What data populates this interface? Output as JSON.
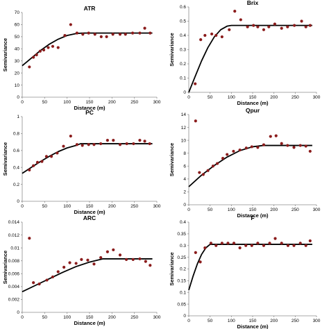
{
  "colors": {
    "points": "#8b1c1c",
    "model_line": "#000000",
    "axis": "#8c8c8c"
  },
  "chart_data": [
    {
      "type": "scatter",
      "title": "ATR",
      "xlabel": "Distance (m)",
      "ylabel": "Semivariance",
      "xlim": [
        0,
        300
      ],
      "ylim": [
        0,
        70
      ],
      "xticks": [
        "0",
        "50",
        "100",
        "150",
        "200",
        "250",
        "300"
      ],
      "yticks": [
        "0",
        "10",
        "20",
        "30",
        "40",
        "50",
        "60",
        "70"
      ],
      "points": [
        [
          16,
          25
        ],
        [
          25,
          33
        ],
        [
          32,
          35
        ],
        [
          40,
          38
        ],
        [
          48,
          39
        ],
        [
          58,
          41
        ],
        [
          68,
          42
        ],
        [
          80,
          41
        ],
        [
          95,
          51
        ],
        [
          108,
          60
        ],
        [
          122,
          53
        ],
        [
          135,
          52
        ],
        [
          148,
          53
        ],
        [
          162,
          52
        ],
        [
          176,
          50
        ],
        [
          188,
          50
        ],
        [
          202,
          52
        ],
        [
          218,
          52
        ],
        [
          230,
          52
        ],
        [
          246,
          53
        ],
        [
          262,
          53
        ],
        [
          273,
          57
        ],
        [
          285,
          53
        ]
      ],
      "model": [
        [
          0,
          26
        ],
        [
          20,
          32.2
        ],
        [
          40,
          38.4
        ],
        [
          60,
          43.7
        ],
        [
          80,
          47.9
        ],
        [
          100,
          51
        ],
        [
          120,
          52.6
        ],
        [
          135,
          53
        ],
        [
          290,
          53
        ]
      ]
    },
    {
      "type": "scatter",
      "title": "Brix",
      "xlabel": "Distance (m)",
      "ylabel": "Semivariance",
      "xlim": [
        0,
        300
      ],
      "ylim": [
        0,
        0.6
      ],
      "xticks": [
        "0",
        "50",
        "100",
        "150",
        "200",
        "250",
        "300"
      ],
      "yticks": [
        "0",
        "0.1",
        "0.2",
        "0.3",
        "0.4",
        "0.5",
        "0.6"
      ],
      "points": [
        [
          15,
          0.06
        ],
        [
          28,
          0.37
        ],
        [
          38,
          0.4
        ],
        [
          54,
          0.41
        ],
        [
          64,
          0.4
        ],
        [
          78,
          0.39
        ],
        [
          95,
          0.44
        ],
        [
          108,
          0.57
        ],
        [
          122,
          0.51
        ],
        [
          138,
          0.46
        ],
        [
          152,
          0.47
        ],
        [
          162,
          0.46
        ],
        [
          176,
          0.44
        ],
        [
          188,
          0.46
        ],
        [
          202,
          0.48
        ],
        [
          218,
          0.45
        ],
        [
          232,
          0.46
        ],
        [
          248,
          0.47
        ],
        [
          265,
          0.5
        ],
        [
          275,
          0.46
        ],
        [
          285,
          0.47
        ]
      ],
      "model": [
        [
          0,
          0
        ],
        [
          15,
          0.112
        ],
        [
          30,
          0.221
        ],
        [
          45,
          0.315
        ],
        [
          60,
          0.39
        ],
        [
          75,
          0.44
        ],
        [
          90,
          0.465
        ],
        [
          100,
          0.47
        ],
        [
          290,
          0.47
        ]
      ]
    },
    {
      "type": "scatter",
      "title": "PC",
      "xlabel": "Distance (m)",
      "ylabel": "Semivariance",
      "xlim": [
        0,
        300
      ],
      "ylim": [
        0,
        1
      ],
      "xticks": [
        "0",
        "50",
        "100",
        "150",
        "200",
        "250",
        "300"
      ],
      "yticks": [
        "0",
        "0.2",
        "0.4",
        "0.6",
        "0.8",
        "1"
      ],
      "points": [
        [
          16,
          0.37
        ],
        [
          25,
          0.42
        ],
        [
          34,
          0.46
        ],
        [
          44,
          0.47
        ],
        [
          54,
          0.53
        ],
        [
          65,
          0.53
        ],
        [
          78,
          0.57
        ],
        [
          92,
          0.65
        ],
        [
          108,
          0.77
        ],
        [
          122,
          0.67
        ],
        [
          134,
          0.66
        ],
        [
          148,
          0.67
        ],
        [
          160,
          0.67
        ],
        [
          175,
          0.68
        ],
        [
          190,
          0.72
        ],
        [
          203,
          0.72
        ],
        [
          218,
          0.67
        ],
        [
          233,
          0.68
        ],
        [
          248,
          0.68
        ],
        [
          262,
          0.72
        ],
        [
          273,
          0.71
        ],
        [
          284,
          0.68
        ]
      ],
      "model": [
        [
          0,
          0.33
        ],
        [
          20,
          0.4
        ],
        [
          40,
          0.467
        ],
        [
          60,
          0.53
        ],
        [
          80,
          0.586
        ],
        [
          100,
          0.63
        ],
        [
          120,
          0.66
        ],
        [
          130,
          0.68
        ],
        [
          290,
          0.68
        ]
      ]
    },
    {
      "type": "scatter",
      "title": "Qpur",
      "xlabel": "Distance (m)",
      "ylabel": "Semivariance",
      "xlim": [
        0,
        300
      ],
      "ylim": [
        0,
        14
      ],
      "xticks": [
        "0",
        "50",
        "100",
        "150",
        "200",
        "250",
        "300"
      ],
      "yticks": [
        "0",
        "2",
        "4",
        "6",
        "8",
        "10",
        "12",
        "14"
      ],
      "points": [
        [
          16,
          13
        ],
        [
          25,
          5
        ],
        [
          34,
          4.7
        ],
        [
          45,
          5.3
        ],
        [
          57,
          6
        ],
        [
          67,
          6.4
        ],
        [
          80,
          7.2
        ],
        [
          90,
          7.8
        ],
        [
          105,
          8.3
        ],
        [
          120,
          8.5
        ],
        [
          135,
          8.8
        ],
        [
          148,
          9
        ],
        [
          162,
          8.9
        ],
        [
          176,
          9.3
        ],
        [
          192,
          10.6
        ],
        [
          205,
          10.7
        ],
        [
          218,
          9.5
        ],
        [
          232,
          9.2
        ],
        [
          247,
          8.9
        ],
        [
          262,
          9.2
        ],
        [
          275,
          9.1
        ],
        [
          285,
          8.3
        ]
      ],
      "model": [
        [
          0,
          2.8
        ],
        [
          30,
          4.6
        ],
        [
          60,
          6.1
        ],
        [
          90,
          7.4
        ],
        [
          120,
          8.4
        ],
        [
          150,
          9
        ],
        [
          175,
          9.2
        ],
        [
          290,
          9.2
        ]
      ]
    },
    {
      "type": "scatter",
      "title": "ARC",
      "xlabel": "Distance (m)",
      "ylabel": "Semivariance",
      "xlim": [
        0,
        300
      ],
      "ylim": [
        0,
        0.014
      ],
      "xticks": [
        "0",
        "50",
        "100",
        "150",
        "200",
        "250",
        "300"
      ],
      "yticks": [
        "0",
        "0.002",
        "0.004",
        "0.006",
        "0.008",
        "0.01",
        "0.012",
        "0.014"
      ],
      "points": [
        [
          16,
          0.0115
        ],
        [
          25,
          0.0046
        ],
        [
          38,
          0.0044
        ],
        [
          55,
          0.005
        ],
        [
          68,
          0.0055
        ],
        [
          80,
          0.0063
        ],
        [
          93,
          0.007
        ],
        [
          106,
          0.0077
        ],
        [
          120,
          0.0076
        ],
        [
          132,
          0.0082
        ],
        [
          146,
          0.0081
        ],
        [
          160,
          0.0075
        ],
        [
          175,
          0.0085
        ],
        [
          190,
          0.0094
        ],
        [
          203,
          0.0097
        ],
        [
          218,
          0.0089
        ],
        [
          232,
          0.0082
        ],
        [
          247,
          0.0082
        ],
        [
          262,
          0.0083
        ],
        [
          275,
          0.0079
        ],
        [
          285,
          0.0073
        ]
      ],
      "model": [
        [
          0,
          0.0032
        ],
        [
          30,
          0.0042
        ],
        [
          60,
          0.0052
        ],
        [
          90,
          0.0062
        ],
        [
          120,
          0.0071
        ],
        [
          150,
          0.0078
        ],
        [
          180,
          0.0083
        ],
        [
          290,
          0.0083
        ]
      ]
    },
    {
      "type": "scatter",
      "title": "F",
      "xlabel": "Distance (m)",
      "ylabel": "Semivariance",
      "xlim": [
        0,
        300
      ],
      "ylim": [
        0,
        0.4
      ],
      "xticks": [
        "0",
        "50",
        "100",
        "150",
        "200",
        "250",
        "300"
      ],
      "yticks": [
        "0",
        "0.05",
        "0.1",
        "0.15",
        "0.2",
        "0.25",
        "0.3",
        "0.35",
        "0.4"
      ],
      "points": [
        [
          16,
          0.27
        ],
        [
          27,
          0.23
        ],
        [
          38,
          0.29
        ],
        [
          52,
          0.31
        ],
        [
          64,
          0.3
        ],
        [
          78,
          0.31
        ],
        [
          92,
          0.31
        ],
        [
          106,
          0.31
        ],
        [
          120,
          0.29
        ],
        [
          134,
          0.3
        ],
        [
          148,
          0.3
        ],
        [
          162,
          0.31
        ],
        [
          176,
          0.3
        ],
        [
          190,
          0.31
        ],
        [
          203,
          0.33
        ],
        [
          218,
          0.31
        ],
        [
          233,
          0.3
        ],
        [
          247,
          0.3
        ],
        [
          262,
          0.31
        ],
        [
          275,
          0.3
        ],
        [
          285,
          0.32
        ]
      ],
      "model": [
        [
          0,
          0.11
        ],
        [
          10,
          0.169
        ],
        [
          20,
          0.221
        ],
        [
          30,
          0.262
        ],
        [
          40,
          0.29
        ],
        [
          50,
          0.305
        ],
        [
          290,
          0.305
        ]
      ]
    }
  ]
}
